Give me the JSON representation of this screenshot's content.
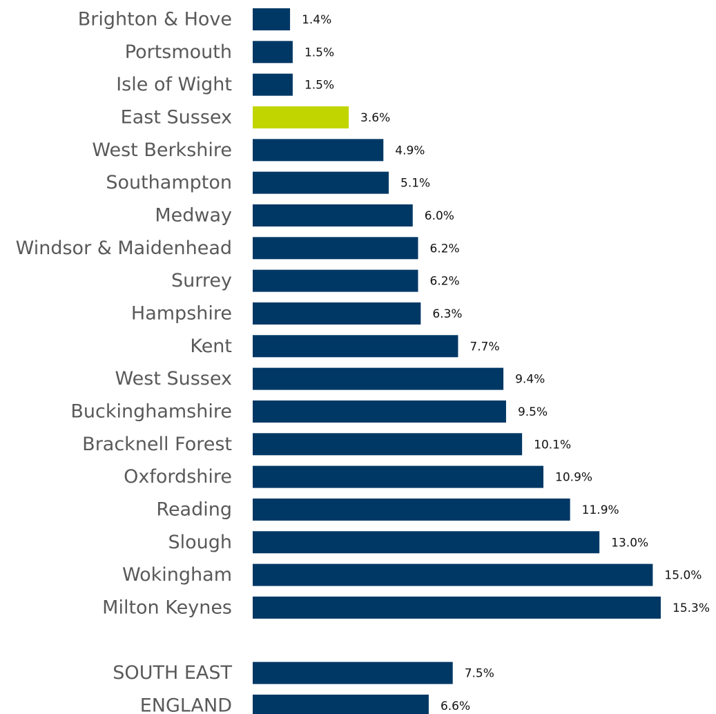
{
  "chart_data": {
    "type": "bar",
    "orientation": "horizontal",
    "categories": [
      "Brighton & Hove",
      "Portsmouth",
      "Isle of Wight",
      "East Sussex",
      "West Berkshire",
      "Southampton",
      "Medway",
      "Windsor & Maidenhead",
      "Surrey",
      "Hampshire",
      "Kent",
      "West Sussex",
      "Buckinghamshire",
      "Bracknell Forest",
      "Oxfordshire",
      "Reading",
      "Slough",
      "Wokingham",
      "Milton Keynes",
      null,
      "SOUTH EAST",
      "ENGLAND"
    ],
    "values": [
      1.4,
      1.5,
      1.5,
      3.6,
      4.9,
      5.1,
      6.0,
      6.2,
      6.2,
      6.3,
      7.7,
      9.4,
      9.5,
      10.1,
      10.9,
      11.9,
      13.0,
      15.0,
      15.3,
      null,
      7.5,
      6.6
    ],
    "value_labels": [
      "1.4%",
      "1.5%",
      "1.5%",
      "3.6%",
      "4.9%",
      "5.1%",
      "6.0%",
      "6.2%",
      "6.2%",
      "6.3%",
      "7.7%",
      "9.4%",
      "9.5%",
      "10.1%",
      "10.9%",
      "11.9%",
      "13.0%",
      "15.0%",
      "15.3%",
      null,
      "7.5%",
      "6.6%"
    ],
    "colors": [
      "#003865",
      "#003865",
      "#003865",
      "#c1d500",
      "#003865",
      "#003865",
      "#003865",
      "#003865",
      "#003865",
      "#003865",
      "#003865",
      "#003865",
      "#003865",
      "#003865",
      "#003865",
      "#003865",
      "#003865",
      "#003865",
      "#003865",
      null,
      "#003865",
      "#003865"
    ]
  }
}
